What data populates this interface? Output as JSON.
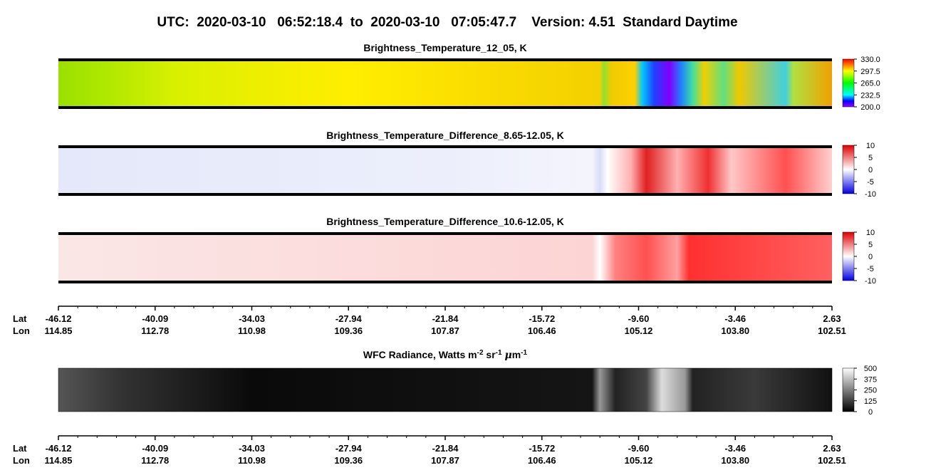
{
  "header": {
    "title": "UTC:  2020-03-10   06:52:18.4  to  2020-03-10   07:05:47.7    Version: 4.51  Standard Daytime"
  },
  "panels": [
    {
      "title": "Brightness_Temperature_12_05, K",
      "colorbar": [
        "330.0",
        "297.5",
        "265.0",
        "232.5",
        "200.0"
      ]
    },
    {
      "title": "Brightness_Temperature_Difference_8.65-12.05, K",
      "colorbar": [
        "10",
        "5",
        "0",
        "-5",
        "-10"
      ]
    },
    {
      "title": "Brightness_Temperature_Difference_10.6-12.05, K",
      "colorbar": [
        "10",
        "5",
        "0",
        "-5",
        "-10"
      ]
    },
    {
      "title": [
        "WFC Radiance, Watts m",
        "-2",
        " sr",
        "-1",
        " ",
        "μ",
        "m",
        "-1"
      ],
      "colorbar": [
        "500",
        "375",
        "250",
        "125",
        "0"
      ]
    }
  ],
  "axes": [
    {
      "lat_label": "Lat",
      "lon_label": "Lon",
      "lat": [
        "-46.12",
        "-40.09",
        "-34.03",
        "-27.94",
        "-21.84",
        "-15.72",
        "-9.60",
        "-3.46",
        "2.63"
      ],
      "lon": [
        "114.85",
        "112.78",
        "110.98",
        "109.36",
        "107.87",
        "106.46",
        "105.12",
        "103.80",
        "102.51"
      ]
    },
    {
      "lat_label": "Lat",
      "lon_label": "Lon",
      "lat": [
        "-46.12",
        "-40.09",
        "-34.03",
        "-27.94",
        "-21.84",
        "-15.72",
        "-9.60",
        "-3.46",
        "2.63"
      ],
      "lon": [
        "114.85",
        "112.78",
        "110.98",
        "109.36",
        "107.87",
        "106.46",
        "105.12",
        "103.80",
        "102.51"
      ]
    }
  ]
}
